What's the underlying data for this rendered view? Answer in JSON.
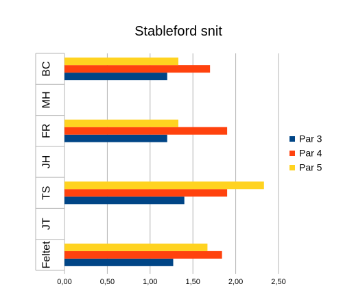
{
  "chart_data": {
    "type": "bar",
    "orientation": "horizontal",
    "title": "Stableford snit",
    "categories": [
      "BC",
      "MH",
      "FR",
      "JH",
      "TS",
      "JT",
      "Feltet"
    ],
    "series": [
      {
        "name": "Par 3",
        "color": "#004586",
        "values": [
          1.2,
          0,
          1.2,
          0,
          1.4,
          0,
          1.27
        ]
      },
      {
        "name": "Par 4",
        "color": "#ff420e",
        "values": [
          1.7,
          0,
          1.9,
          0,
          1.9,
          0,
          1.84
        ]
      },
      {
        "name": "Par 5",
        "color": "#ffd320",
        "values": [
          1.33,
          0,
          1.33,
          0,
          2.33,
          0,
          1.67
        ]
      }
    ],
    "xlim": [
      0,
      2.5
    ],
    "xticks": [
      "0,00",
      "0,50",
      "1,00",
      "1,50",
      "2,00",
      "2,50"
    ],
    "grid": true,
    "legend_position": "right"
  }
}
